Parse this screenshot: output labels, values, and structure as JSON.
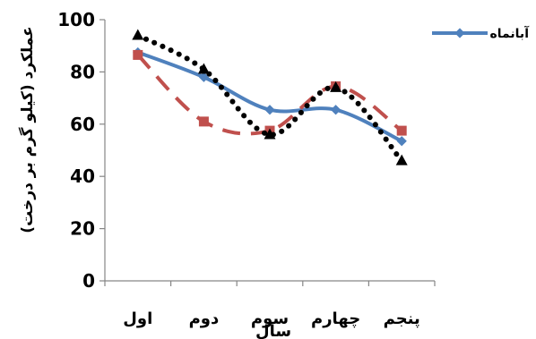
{
  "chart_data": {
    "type": "line",
    "categories": [
      "اول",
      "دوم",
      "سوم",
      "چهارم",
      "پنجم"
    ],
    "ylabel": "عملکرد (کیلو گرم بر درخت)",
    "xlabel": "سال",
    "ylim": [
      0,
      100
    ],
    "yticks": [
      0,
      20,
      40,
      60,
      80,
      100
    ],
    "grid": false,
    "legend_position": "top-right",
    "series": [
      {
        "name": "آبانماه",
        "values": [
          87.5,
          78,
          65.5,
          65.5,
          53.5
        ],
        "color": "#4F81BD",
        "style": "solid",
        "marker": "diamond"
      },
      {
        "values": [
          86.5,
          61,
          57.5,
          74.5,
          57.5
        ],
        "color": "#C0504D",
        "style": "dashed",
        "marker": "square"
      },
      {
        "values": [
          94,
          81,
          56,
          74,
          46
        ],
        "color": "#000000",
        "style": "dotted",
        "marker": "triangle"
      }
    ]
  }
}
